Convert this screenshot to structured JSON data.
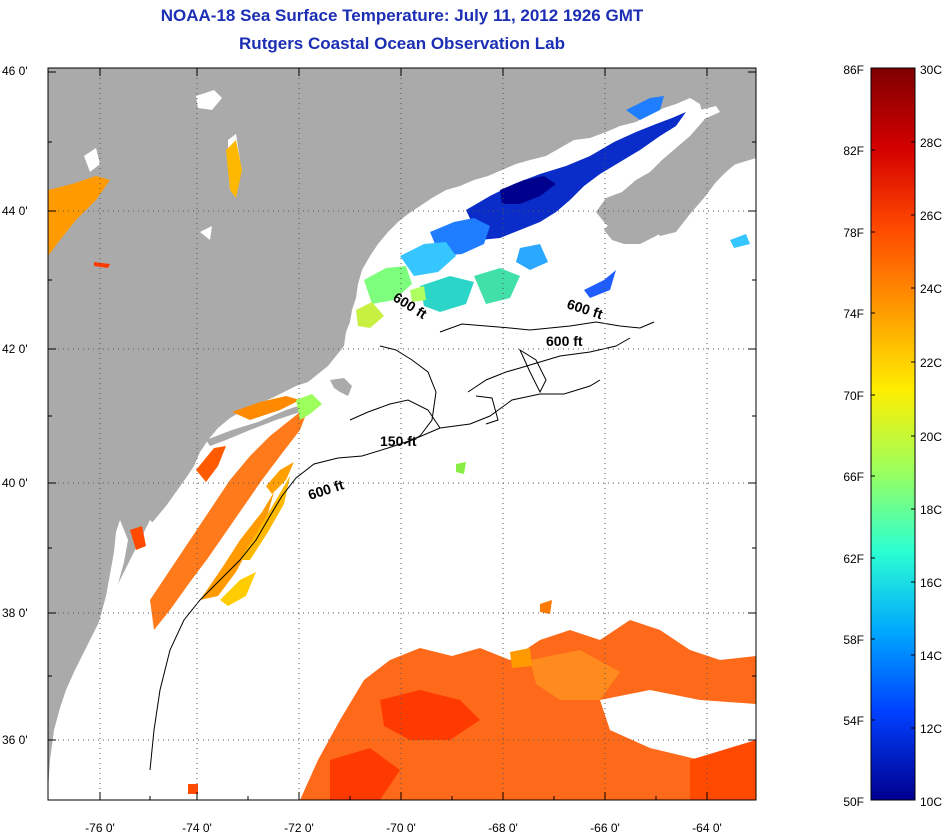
{
  "header": {
    "title": "NOAA-18 Sea Surface Temperature:  July 11, 2012 1926 GMT",
    "subtitle": "Rutgers Coastal Ocean Observation Lab"
  },
  "map": {
    "lat_ticks": [
      "46 0'",
      "44 0'",
      "42 0'",
      "40 0'",
      "38 0'",
      "36 0'"
    ],
    "lon_ticks": [
      "-76 0'",
      "-74 0'",
      "-72 0'",
      "-70 0'",
      "-68 0'",
      "-66 0'",
      "-64 0'"
    ],
    "contour_labels": [
      "600 ft",
      "600 ft",
      "600 ft",
      "150 ft",
      "600 ft"
    ],
    "colors": {
      "land": "#aaaaaa",
      "ocean": "#ffffff",
      "grid": "#555555"
    }
  },
  "colorbar": {
    "fahrenheit": [
      "86F",
      "82F",
      "78F",
      "74F",
      "70F",
      "66F",
      "62F",
      "58F",
      "54F",
      "50F"
    ],
    "celsius": [
      "30C",
      "28C",
      "26C",
      "24C",
      "22C",
      "20C",
      "18C",
      "16C",
      "14C",
      "12C",
      "10C"
    ],
    "gradient": [
      "#7f0000",
      "#d40000",
      "#ff4a00",
      "#ff9a00",
      "#ffee00",
      "#9cff5c",
      "#2bffd2",
      "#00a8ff",
      "#0040ff",
      "#00008f"
    ]
  }
}
